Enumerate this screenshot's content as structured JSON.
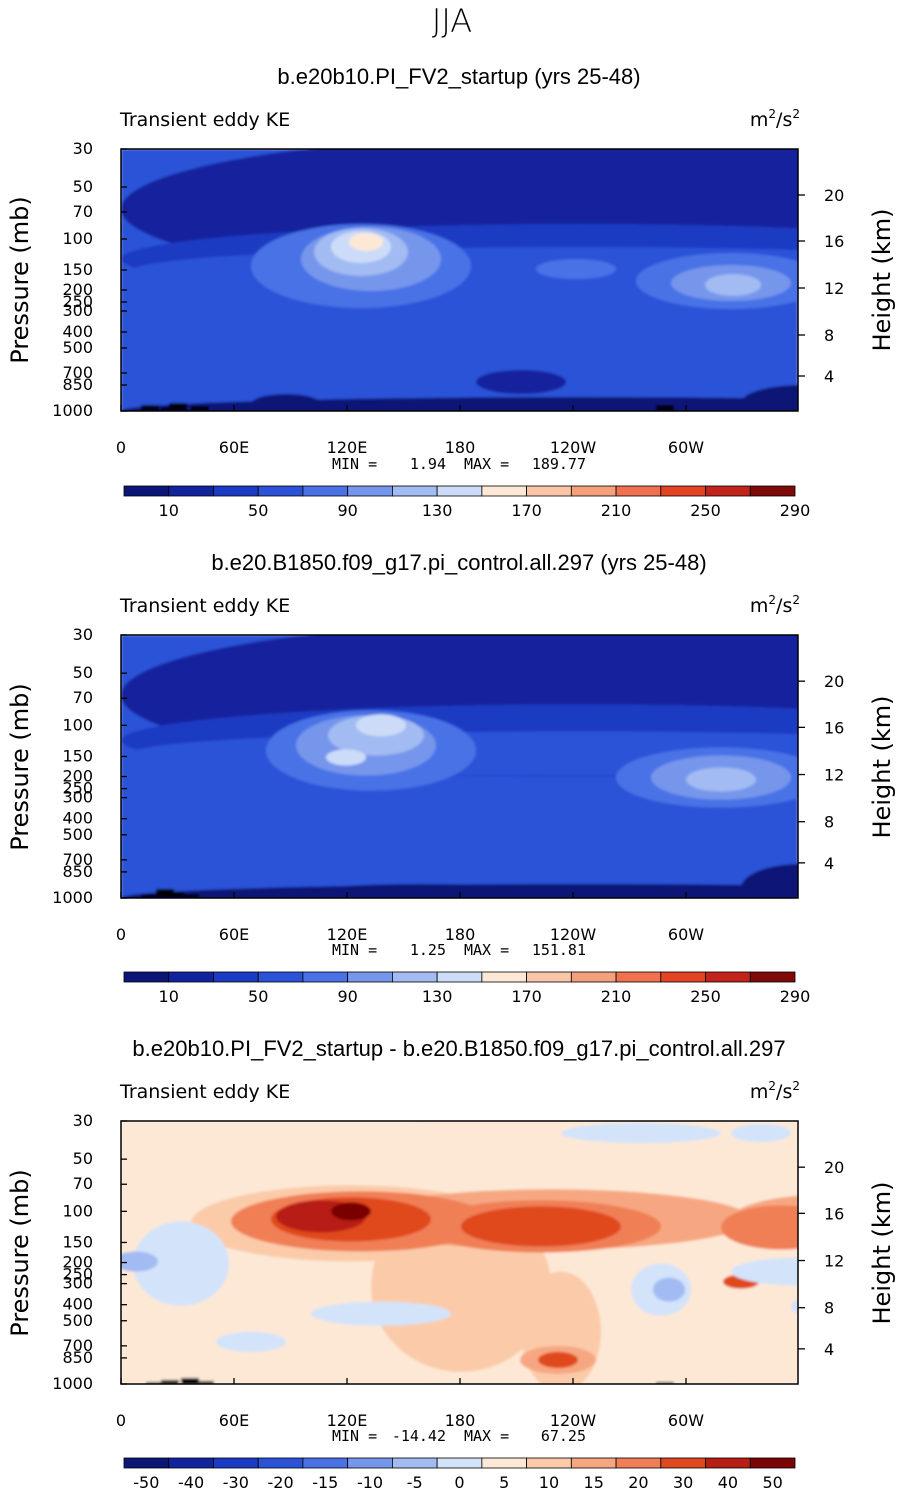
{
  "figure_title": "JJA",
  "colors": {
    "seq": [
      "#0b1677",
      "#12249d",
      "#1a3bc3",
      "#2c52d8",
      "#4a72e6",
      "#7696ec",
      "#a2bbf2",
      "#ccdcf8",
      "#fde8d6",
      "#f9c6a8",
      "#f5a07c",
      "#ef7150",
      "#e34424",
      "#c2231a",
      "#7f0a0a"
    ],
    "div": [
      "#0b1677",
      "#12249d",
      "#1a3bc3",
      "#2c52d8",
      "#4a72e6",
      "#7696ec",
      "#a2bbf2",
      "#d3e3fa",
      "#fde8d6",
      "#fbcba9",
      "#f6a781",
      "#f07f57",
      "#e0481f",
      "#b71e14",
      "#7a0505"
    ]
  },
  "chart_data": [
    {
      "type": "contour",
      "title": "b.e20b10.PI_FV2_startup (yrs 25-48)",
      "left_label": "Transient eddy KE",
      "units_base": "m",
      "units_exp": "2",
      "units_rest": "/s",
      "units_exp2": "2",
      "xlabel": "",
      "ylabel": "Pressure (mb)",
      "ylabel_right": "Height (km)",
      "x_ticks": [
        "0",
        "60E",
        "120E",
        "180",
        "120W",
        "60W"
      ],
      "y_ticks": [
        "30",
        "50",
        "70",
        "100",
        "150",
        "200",
        "250",
        "300",
        "400",
        "500",
        "700",
        "850",
        "1000"
      ],
      "y_ticks_right": [
        "20",
        "16",
        "12",
        "8",
        "4"
      ],
      "min_label": "MIN =",
      "min_value": "1.94",
      "max_label": "MAX =",
      "max_value": "189.77",
      "colorbar_labels": [
        "10",
        "50",
        "90",
        "130",
        "170",
        "210",
        "250",
        "290"
      ],
      "palette": "seq"
    },
    {
      "type": "contour",
      "title": "b.e20.B1850.f09_g17.pi_control.all.297 (yrs 25-48)",
      "left_label": "Transient eddy KE",
      "units_base": "m",
      "units_exp": "2",
      "units_rest": "/s",
      "units_exp2": "2",
      "xlabel": "",
      "ylabel": "Pressure (mb)",
      "ylabel_right": "Height (km)",
      "x_ticks": [
        "0",
        "60E",
        "120E",
        "180",
        "120W",
        "60W"
      ],
      "y_ticks": [
        "30",
        "50",
        "70",
        "100",
        "150",
        "200",
        "250",
        "300",
        "400",
        "500",
        "700",
        "850",
        "1000"
      ],
      "y_ticks_right": [
        "20",
        "16",
        "12",
        "8",
        "4"
      ],
      "min_label": "MIN =",
      "min_value": "1.25",
      "max_label": "MAX =",
      "max_value": "151.81",
      "colorbar_labels": [
        "10",
        "50",
        "90",
        "130",
        "170",
        "210",
        "250",
        "290"
      ],
      "palette": "seq"
    },
    {
      "type": "contour",
      "title": "b.e20b10.PI_FV2_startup - b.e20.B1850.f09_g17.pi_control.all.297",
      "left_label": "Transient eddy KE",
      "units_base": "m",
      "units_exp": "2",
      "units_rest": "/s",
      "units_exp2": "2",
      "xlabel": "",
      "ylabel": "Pressure (mb)",
      "ylabel_right": "Height (km)",
      "x_ticks": [
        "0",
        "60E",
        "120E",
        "180",
        "120W",
        "60W"
      ],
      "y_ticks": [
        "30",
        "50",
        "70",
        "100",
        "150",
        "200",
        "250",
        "300",
        "400",
        "500",
        "700",
        "850",
        "1000"
      ],
      "y_ticks_right": [
        "20",
        "16",
        "12",
        "8",
        "4"
      ],
      "min_label": "MIN =",
      "min_value": "-14.42",
      "max_label": "MAX =",
      "max_value": "67.25",
      "colorbar_labels": [
        "-50",
        "-40",
        "-30",
        "-20",
        "-15",
        "-10",
        "-5",
        "0",
        "5",
        "10",
        "15",
        "20",
        "30",
        "40",
        "50"
      ],
      "palette": "div"
    }
  ]
}
